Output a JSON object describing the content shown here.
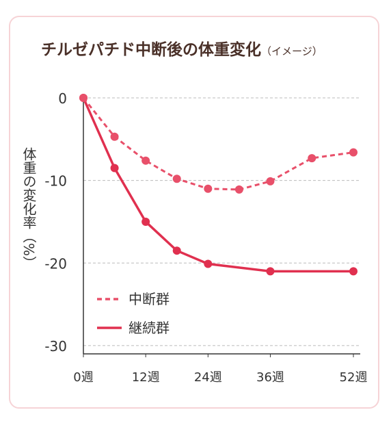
{
  "chart_data": {
    "type": "line",
    "title": "チルゼパチド中断後の体重変化",
    "title_note": "（イメージ）",
    "y_label": "体重の変化率（%）",
    "xlim": [
      0,
      52
    ],
    "xticks": [
      {
        "value": 0,
        "label": "0週"
      },
      {
        "value": 12,
        "label": "12週"
      },
      {
        "value": 24,
        "label": "24週"
      },
      {
        "value": 36,
        "label": "36週"
      },
      {
        "value": 52,
        "label": "52週"
      }
    ],
    "ylim": [
      -31,
      0
    ],
    "yticks": [
      0,
      -10,
      -20,
      -30
    ],
    "grid": true,
    "legend": "lower-left",
    "series": [
      {
        "name": "中断群",
        "color": "#e8506a",
        "dashed": true,
        "x": [
          0,
          6,
          12,
          18,
          24,
          30,
          36,
          44,
          52
        ],
        "values": [
          0,
          -4.7,
          -7.6,
          -9.8,
          -11,
          -11.1,
          -10.1,
          -7.3,
          -6.6
        ]
      },
      {
        "name": "継続群",
        "color": "#e0304f",
        "dashed": false,
        "x": [
          0,
          6,
          12,
          18,
          24,
          36,
          52
        ],
        "values": [
          0,
          -8.5,
          -15,
          -18.5,
          -20.1,
          -21,
          -21
        ]
      }
    ]
  }
}
